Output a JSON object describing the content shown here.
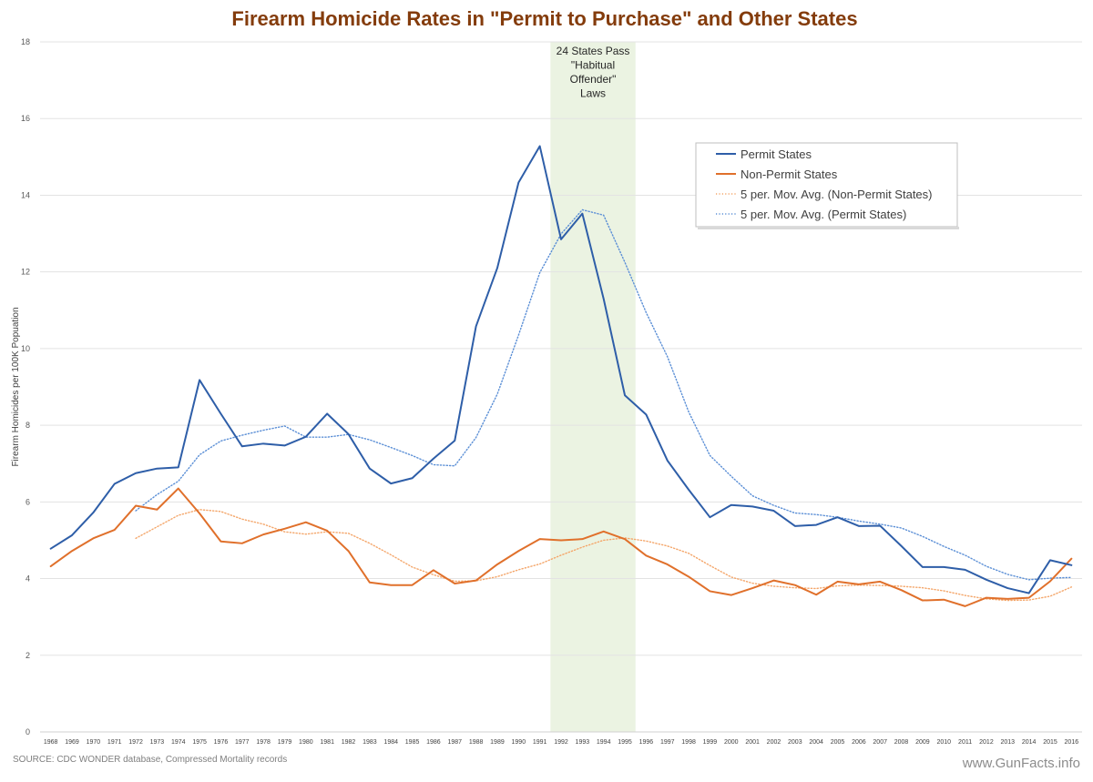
{
  "chart_data": {
    "type": "line",
    "title": "Firearm Homicide Rates in \"Permit to Purchase\" and Other States",
    "ylabel": "Firearm Homicides per 100K Popuation",
    "xlabel": "",
    "ylim": [
      0,
      18
    ],
    "yticks": [
      "0",
      "2",
      "4",
      "6",
      "8",
      "10",
      "12",
      "14",
      "16",
      "18"
    ],
    "grid": true,
    "legend_position": "upper-right",
    "categories": [
      "1968",
      "1969",
      "1970",
      "1971",
      "1972",
      "1973",
      "1974",
      "1975",
      "1976",
      "1977",
      "1978",
      "1979",
      "1980",
      "1981",
      "1982",
      "1983",
      "1984",
      "1985",
      "1986",
      "1987",
      "1988",
      "1989",
      "1990",
      "1991",
      "1992",
      "1993",
      "1994",
      "1995",
      "1996",
      "1997",
      "1998",
      "1999",
      "2000",
      "2001",
      "2002",
      "2003",
      "2004",
      "2005",
      "2006",
      "2007",
      "2008",
      "2009",
      "2010",
      "2011",
      "2012",
      "2013",
      "2014",
      "2015",
      "2016"
    ],
    "series": [
      {
        "name": "Permit States",
        "color": "#2e5ea8",
        "style": "solid",
        "values": [
          4.78,
          5.13,
          5.72,
          6.47,
          6.75,
          6.87,
          6.9,
          9.18,
          8.3,
          7.45,
          7.52,
          7.47,
          7.7,
          8.3,
          7.77,
          6.87,
          6.48,
          6.62,
          7.13,
          7.6,
          10.58,
          12.1,
          14.33,
          15.28,
          12.85,
          13.52,
          11.3,
          8.78,
          8.28,
          7.08,
          6.32,
          5.6,
          5.92,
          5.88,
          5.77,
          5.37,
          5.4,
          5.6,
          5.37,
          5.38,
          4.85,
          4.3,
          4.3,
          4.23,
          3.97,
          3.75,
          3.62,
          4.48,
          4.35
        ]
      },
      {
        "name": "Non-Permit States",
        "color": "#e0702b",
        "style": "solid",
        "values": [
          4.32,
          4.72,
          5.05,
          5.27,
          5.9,
          5.8,
          6.35,
          5.7,
          4.97,
          4.92,
          5.15,
          5.3,
          5.47,
          5.25,
          4.72,
          3.9,
          3.83,
          3.83,
          4.22,
          3.87,
          3.95,
          4.37,
          4.72,
          5.03,
          5.0,
          5.03,
          5.23,
          5.03,
          4.6,
          4.37,
          4.05,
          3.67,
          3.57,
          3.75,
          3.95,
          3.83,
          3.58,
          3.92,
          3.85,
          3.92,
          3.7,
          3.43,
          3.45,
          3.28,
          3.5,
          3.47,
          3.5,
          3.93,
          4.52
        ]
      },
      {
        "name": "5 per. Mov. Avg. (Non-Permit States)",
        "color": "#f4a66a",
        "style": "dotted",
        "values": [
          null,
          null,
          null,
          null,
          5.05,
          5.35,
          5.65,
          5.8,
          5.75,
          5.55,
          5.42,
          5.22,
          5.16,
          5.22,
          5.18,
          4.92,
          4.62,
          4.3,
          4.1,
          3.93,
          3.94,
          4.05,
          4.23,
          4.38,
          4.61,
          4.82,
          5.0,
          5.06,
          4.98,
          4.85,
          4.66,
          4.34,
          4.04,
          3.88,
          3.8,
          3.76,
          3.74,
          3.81,
          3.83,
          3.82,
          3.8,
          3.76,
          3.68,
          3.56,
          3.47,
          3.43,
          3.44,
          3.54,
          3.78
        ]
      },
      {
        "name": "5 per. Mov. Avg. (Permit States)",
        "color": "#5b8fd6",
        "style": "dotted",
        "values": [
          null,
          null,
          null,
          null,
          5.77,
          6.19,
          6.54,
          7.23,
          7.59,
          7.74,
          7.87,
          7.98,
          7.69,
          7.69,
          7.76,
          7.62,
          7.42,
          7.21,
          6.97,
          6.94,
          7.68,
          8.81,
          10.35,
          11.98,
          12.99,
          13.62,
          13.48,
          12.25,
          10.94,
          9.79,
          8.35,
          7.21,
          6.67,
          6.16,
          5.91,
          5.71,
          5.67,
          5.6,
          5.5,
          5.42,
          5.32,
          5.1,
          4.84,
          4.61,
          4.32,
          4.11,
          3.97,
          4.01,
          4.03
        ]
      }
    ],
    "annotation": {
      "lines": [
        "24 States Pass",
        "\"Habitual",
        "Offender\"",
        "Laws"
      ],
      "span": [
        "1992",
        "1995"
      ],
      "color": "#ebf3e2"
    },
    "source": "SOURCE: CDC WONDER database, Compressed Mortality records",
    "brand": "www.GunFacts.info"
  }
}
